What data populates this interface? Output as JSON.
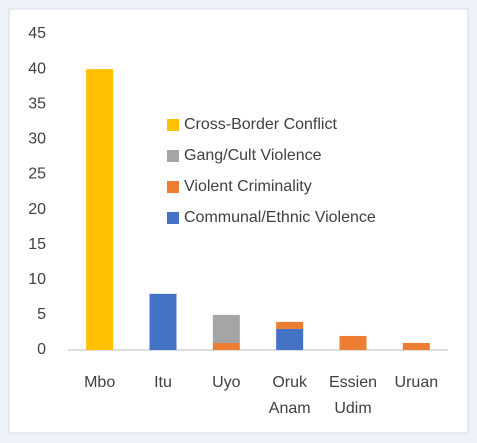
{
  "chart_data": {
    "type": "stacked-bar",
    "categories": [
      "Mbo",
      "Itu",
      "Uyo",
      "Oruk Anam",
      "Essien Udim",
      "Uruan"
    ],
    "series": [
      {
        "name": "Communal/Ethnic Violence",
        "color": "#4472c4",
        "values": [
          0,
          8,
          0,
          3,
          0,
          0
        ]
      },
      {
        "name": "Violent Criminality",
        "color": "#ed7d31",
        "values": [
          0,
          0,
          1,
          1,
          2,
          1
        ]
      },
      {
        "name": "Gang/Cult Violence",
        "color": "#a5a5a5",
        "values": [
          0,
          0,
          4,
          0,
          0,
          0
        ]
      },
      {
        "name": "Cross-Border Conflict",
        "color": "#ffc000",
        "values": [
          40,
          0,
          0,
          0,
          0,
          0
        ]
      }
    ],
    "ylim": [
      0,
      45
    ],
    "yticks": [
      0,
      5,
      10,
      15,
      20,
      25,
      30,
      35,
      40,
      45
    ],
    "grid": false
  }
}
